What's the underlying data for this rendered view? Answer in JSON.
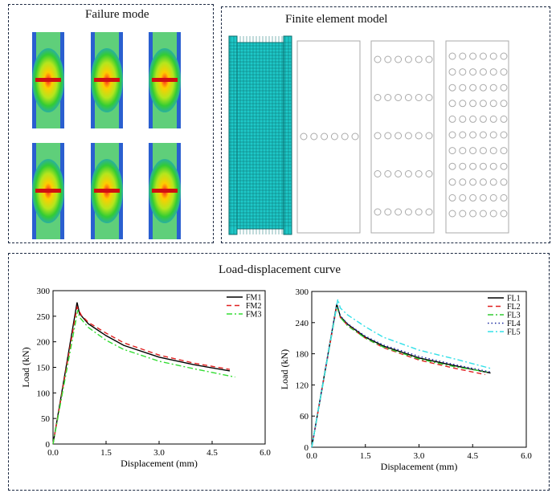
{
  "panels": {
    "failure_mode": {
      "title": "Failure mode",
      "specimen_count": 6
    },
    "fem": {
      "title": "Finite element model",
      "plates": [
        {
          "hole_rows": 1
        },
        {
          "hole_rows": 5
        },
        {
          "hole_rows": 11
        }
      ],
      "holes_per_row": 6
    },
    "curves": {
      "title": "Load-displacement curve"
    }
  },
  "colors": {
    "mesh": "#1ec8c8",
    "border": "#1a2740"
  },
  "chart_data": [
    {
      "type": "line",
      "xlabel": "Displacement (mm)",
      "ylabel": "Load (kN)",
      "xlim": [
        0,
        6
      ],
      "ylim": [
        0,
        300
      ],
      "xticks": [
        "0.0",
        "1.5",
        "3.0",
        "4.5",
        "6.0"
      ],
      "yticks": [
        "0",
        "50",
        "100",
        "150",
        "200",
        "250",
        "300"
      ],
      "legend": "top-right",
      "grid": false,
      "series": [
        {
          "name": "FM1",
          "color": "#000000",
          "dash": "",
          "x": [
            0,
            0.68,
            0.75,
            1.0,
            1.5,
            2.0,
            3.0,
            4.0,
            5.0
          ],
          "y": [
            0,
            277,
            255,
            235,
            212,
            193,
            170,
            155,
            143
          ]
        },
        {
          "name": "FM2",
          "color": "#e02020",
          "dash": "6,4",
          "x": [
            0,
            0.68,
            0.8,
            1.0,
            1.5,
            2.0,
            3.0,
            4.0,
            5.0
          ],
          "y": [
            0,
            268,
            252,
            238,
            217,
            198,
            174,
            158,
            146
          ]
        },
        {
          "name": "FM3",
          "color": "#33dd33",
          "dash": "7,3,2,3",
          "x": [
            0,
            0.7,
            0.75,
            1.0,
            1.5,
            2.0,
            3.0,
            4.0,
            5.15
          ],
          "y": [
            0,
            262,
            248,
            228,
            203,
            185,
            162,
            147,
            131
          ]
        }
      ]
    },
    {
      "type": "line",
      "xlabel": "Displacement (mm)",
      "ylabel": "Load (kN)",
      "xlim": [
        0,
        6
      ],
      "ylim": [
        0,
        300
      ],
      "xticks": [
        "0.0",
        "1.5",
        "3.0",
        "4.5",
        "6.0"
      ],
      "yticks": [
        "0",
        "60",
        "120",
        "180",
        "240",
        "300"
      ],
      "legend": "top-right",
      "grid": false,
      "series": [
        {
          "name": "FL1",
          "color": "#000000",
          "dash": "",
          "x": [
            0,
            0.7,
            0.8,
            1.0,
            1.5,
            2.0,
            3.0,
            4.0,
            5.0
          ],
          "y": [
            0,
            276,
            252,
            237,
            212,
            195,
            172,
            157,
            143
          ]
        },
        {
          "name": "FL2",
          "color": "#e02020",
          "dash": "6,4",
          "x": [
            0,
            0.7,
            0.8,
            1.0,
            1.5,
            2.0,
            3.0,
            4.0,
            4.85
          ],
          "y": [
            0,
            272,
            250,
            235,
            210,
            192,
            168,
            152,
            140
          ]
        },
        {
          "name": "FL3",
          "color": "#33cc33",
          "dash": "7,3,2,3",
          "x": [
            0,
            0.7,
            0.8,
            1.0,
            1.5,
            2.0,
            3.0,
            4.0,
            4.9
          ],
          "y": [
            0,
            272,
            250,
            234,
            210,
            193,
            170,
            155,
            145
          ]
        },
        {
          "name": "FL4",
          "color": "#1a2aa0",
          "dash": "1.5,3",
          "x": [
            0,
            0.7,
            0.8,
            1.0,
            1.5,
            2.0,
            3.0,
            4.0,
            5.0
          ],
          "y": [
            0,
            275,
            253,
            238,
            214,
            197,
            175,
            159,
            145
          ]
        },
        {
          "name": "FL5",
          "color": "#33e0e8",
          "dash": "7,3,2,3",
          "x": [
            0,
            0.73,
            0.8,
            1.0,
            1.5,
            2.0,
            3.0,
            4.0,
            5.05
          ],
          "y": [
            0,
            285,
            268,
            255,
            232,
            212,
            187,
            170,
            151
          ]
        }
      ]
    }
  ]
}
